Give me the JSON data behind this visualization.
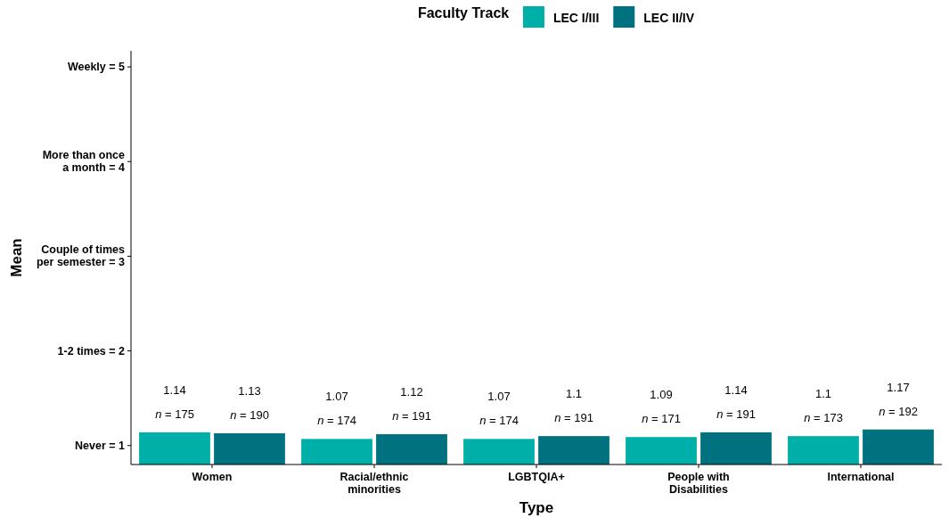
{
  "chart_data": {
    "type": "bar",
    "xlabel": "Type",
    "ylabel": "Mean",
    "legend_title": "Faculty Track",
    "legend": "top",
    "categories": [
      "Women",
      "Racial/ethnic\nminorities",
      "LGBTQIA+",
      "People with\nDisabilities",
      "International"
    ],
    "series": [
      {
        "name": "LEC I/III",
        "color": "#00b0a8",
        "values": [
          1.14,
          1.07,
          1.07,
          1.09,
          1.1
        ]
      },
      {
        "name": "LEC II/IV",
        "color": "#00727f",
        "values": [
          1.13,
          1.12,
          1.1,
          1.14,
          1.17
        ]
      }
    ],
    "data_labels": true,
    "ylim": [
      0.8,
      5.17
    ],
    "yticks": [
      {
        "value": 1,
        "label": "Never = 1"
      },
      {
        "value": 2,
        "label": "1-2 times = 2"
      },
      {
        "value": 3,
        "label": "Couple of times\nper semester = 3"
      },
      {
        "value": 4,
        "label": "More than once\na month = 4"
      },
      {
        "value": 5,
        "label": "Weekly = 5"
      }
    ],
    "grid": false,
    "annotations": [
      {
        "text": "n = 175",
        "x": "Women",
        "y": 1.14
      },
      {
        "text": "n = 190",
        "x": "Women",
        "y": 1.13
      },
      {
        "text": "n = 174",
        "x": "Racial/ethnic\nminorities",
        "y": 1.07
      },
      {
        "text": "n = 191",
        "x": "Racial/ethnic\nminorities",
        "y": 1.12
      },
      {
        "text": "n = 174",
        "x": "LGBTQIA+",
        "y": 1.07
      },
      {
        "text": "n = 191",
        "x": "LGBTQIA+",
        "y": 1.1
      },
      {
        "text": "n = 171",
        "x": "People with\nDisabilities",
        "y": 1.09
      },
      {
        "text": "n = 191",
        "x": "People with\nDisabilities",
        "y": 1.14
      },
      {
        "text": "n = 173",
        "x": "International",
        "y": 1.1
      },
      {
        "text": "n = 192",
        "x": "International",
        "y": 1.17
      }
    ]
  }
}
